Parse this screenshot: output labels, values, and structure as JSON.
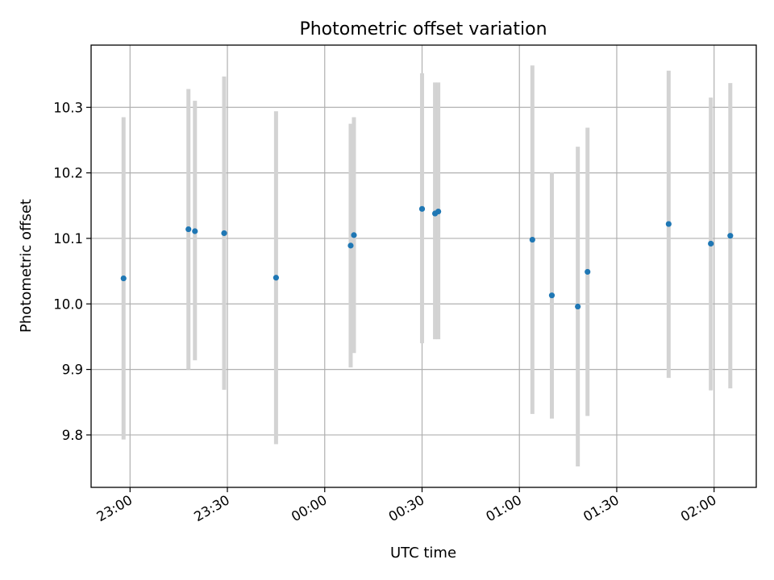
{
  "chart_data": {
    "type": "scatter",
    "title": "Photometric offset variation",
    "xlabel": "UTC time",
    "ylabel": "Photometric offset",
    "x_ticks": [
      {
        "value": -60,
        "label": "23:00"
      },
      {
        "value": -30,
        "label": "23:30"
      },
      {
        "value": 0,
        "label": "00:00"
      },
      {
        "value": 30,
        "label": "00:30"
      },
      {
        "value": 60,
        "label": "01:00"
      },
      {
        "value": 90,
        "label": "01:30"
      },
      {
        "value": 120,
        "label": "02:00"
      }
    ],
    "y_ticks": [
      9.8,
      9.9,
      10.0,
      10.1,
      10.2,
      10.3
    ],
    "xlim": [
      "22:48",
      "02:13"
    ],
    "ylim": [
      9.72,
      10.395
    ],
    "grid": true,
    "colors": {
      "marker": "#1f77b4",
      "errorbar": "#d3d3d3",
      "grid": "#b0b0b0"
    },
    "points": [
      {
        "x": "22:58",
        "y": 10.039,
        "ylow": 9.793,
        "yhigh": 10.285
      },
      {
        "x": "23:18",
        "y": 10.114,
        "ylow": 9.9,
        "yhigh": 10.328
      },
      {
        "x": "23:20",
        "y": 10.111,
        "ylow": 9.914,
        "yhigh": 10.31
      },
      {
        "x": "23:29",
        "y": 10.108,
        "ylow": 9.869,
        "yhigh": 10.347
      },
      {
        "x": "23:45",
        "y": 10.04,
        "ylow": 9.786,
        "yhigh": 10.294
      },
      {
        "x": "00:08",
        "y": 10.089,
        "ylow": 9.903,
        "yhigh": 10.275
      },
      {
        "x": "00:09",
        "y": 10.105,
        "ylow": 9.925,
        "yhigh": 10.285
      },
      {
        "x": "00:30",
        "y": 10.145,
        "ylow": 9.94,
        "yhigh": 10.352
      },
      {
        "x": "00:34",
        "y": 10.138,
        "ylow": 9.946,
        "yhigh": 10.338
      },
      {
        "x": "00:35",
        "y": 10.141,
        "ylow": 9.946,
        "yhigh": 10.338
      },
      {
        "x": "01:04",
        "y": 10.098,
        "ylow": 9.832,
        "yhigh": 10.364
      },
      {
        "x": "01:10",
        "y": 10.013,
        "ylow": 9.825,
        "yhigh": 10.201
      },
      {
        "x": "01:18",
        "y": 9.996,
        "ylow": 9.752,
        "yhigh": 10.24
      },
      {
        "x": "01:21",
        "y": 10.049,
        "ylow": 9.829,
        "yhigh": 10.269
      },
      {
        "x": "01:46",
        "y": 10.122,
        "ylow": 9.887,
        "yhigh": 10.356
      },
      {
        "x": "01:59",
        "y": 10.092,
        "ylow": 9.868,
        "yhigh": 10.315
      },
      {
        "x": "02:05",
        "y": 10.104,
        "ylow": 9.871,
        "yhigh": 10.337
      }
    ]
  }
}
